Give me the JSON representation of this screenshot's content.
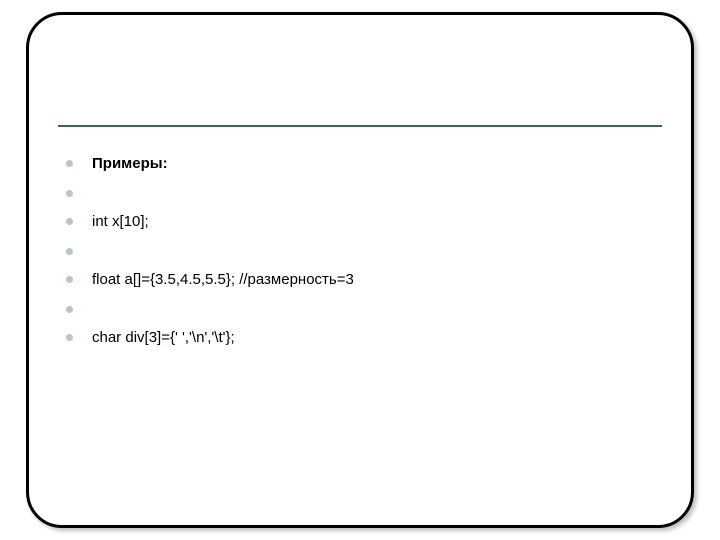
{
  "slide": {
    "frame": {
      "border_color": "#000000",
      "border_width": 3,
      "border_radius": 36,
      "shadow": "3px 3px 4px rgba(0,0,0,0.25)"
    },
    "divider": {
      "color": "#336666",
      "thickness": 2
    },
    "bullet": {
      "color": "#b9c6c6",
      "diameter": 7
    },
    "text": {
      "font_family": "Arial",
      "font_size": 15,
      "color": "#000000"
    },
    "items": [
      {
        "text": "Примеры:",
        "bold": true
      },
      {
        "text": "",
        "bold": false
      },
      {
        "text": "int x[10];",
        "bold": false
      },
      {
        "text": "",
        "bold": false
      },
      {
        "text": "float a[]={3.5,4.5,5.5}; //размерность=3",
        "bold": false
      },
      {
        "text": "",
        "bold": false
      },
      {
        "text": "сhar div[3]={' ','\\n','\\t'};",
        "bold": false
      }
    ]
  }
}
